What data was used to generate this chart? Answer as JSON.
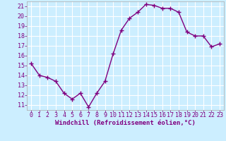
{
  "x": [
    0,
    1,
    2,
    3,
    4,
    5,
    6,
    7,
    8,
    9,
    10,
    11,
    12,
    13,
    14,
    15,
    16,
    17,
    18,
    19,
    20,
    21,
    22,
    23
  ],
  "y": [
    15.2,
    14.0,
    13.8,
    13.4,
    12.2,
    11.6,
    12.2,
    10.8,
    12.2,
    13.4,
    16.2,
    18.6,
    19.8,
    20.4,
    21.2,
    21.1,
    20.8,
    20.8,
    20.4,
    18.4,
    18.0,
    18.0,
    16.9,
    17.2
  ],
  "line_color": "#800080",
  "marker": "+",
  "marker_size": 4,
  "linewidth": 1.0,
  "markeredgewidth": 1.0,
  "xlabel": "Windchill (Refroidissement éolien,°C)",
  "xlabel_fontsize": 6.5,
  "ytick_labels": [
    "11",
    "12",
    "13",
    "14",
    "15",
    "16",
    "17",
    "18",
    "19",
    "20",
    "21"
  ],
  "ytick_values": [
    11,
    12,
    13,
    14,
    15,
    16,
    17,
    18,
    19,
    20,
    21
  ],
  "xtick_labels": [
    "0",
    "1",
    "2",
    "3",
    "4",
    "5",
    "6",
    "7",
    "8",
    "9",
    "10",
    "11",
    "12",
    "13",
    "14",
    "15",
    "16",
    "17",
    "18",
    "19",
    "20",
    "21",
    "22",
    "23"
  ],
  "ylim": [
    10.5,
    21.5
  ],
  "xlim": [
    -0.5,
    23.5
  ],
  "bg_color": "#cceeff",
  "grid_color": "#ffffff",
  "tick_fontsize": 6,
  "spine_color": "#aaaaaa"
}
